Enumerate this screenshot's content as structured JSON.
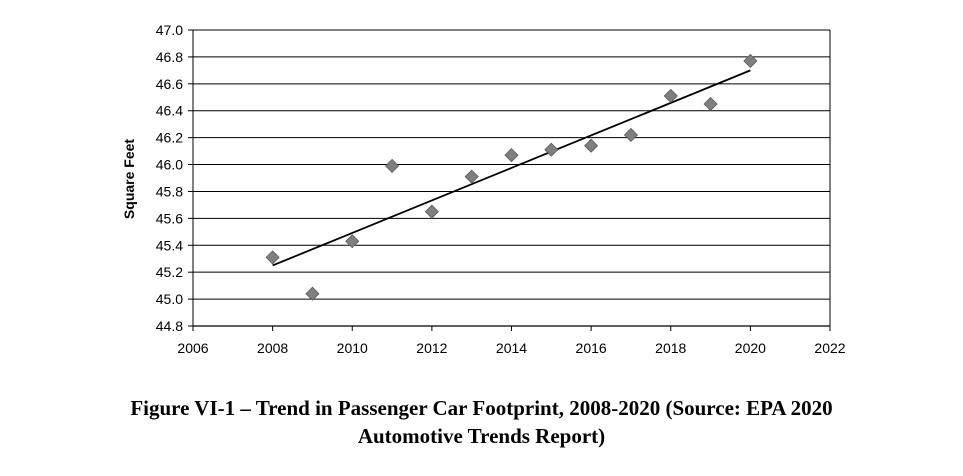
{
  "chart_data": {
    "type": "scatter",
    "ylabel": "Square Feet",
    "xlim": [
      2006,
      2022
    ],
    "ylim": [
      44.8,
      47.0
    ],
    "x_ticks": [
      2006,
      2008,
      2010,
      2012,
      2014,
      2016,
      2018,
      2020,
      2022
    ],
    "y_ticks": [
      44.8,
      45.0,
      45.2,
      45.4,
      45.6,
      45.8,
      46.0,
      46.2,
      46.4,
      46.6,
      46.8,
      47.0
    ],
    "grid": "horizontal",
    "series": [
      {
        "x": [
          2008,
          2009,
          2010,
          2011,
          2012,
          2013,
          2014,
          2015,
          2016,
          2017,
          2018,
          2019,
          2020
        ],
        "y": [
          45.31,
          45.04,
          45.43,
          45.99,
          45.65,
          45.91,
          46.07,
          46.11,
          46.14,
          46.22,
          46.51,
          46.45,
          46.77
        ],
        "marker_color": "#7f7f7f"
      }
    ],
    "trendline": {
      "x": [
        2008,
        2020
      ],
      "y": [
        45.25,
        46.7
      ],
      "color": "#000000"
    }
  },
  "caption": {
    "line1": "Figure VI-1 – Trend in Passenger Car Footprint, 2008-2020 (Source:  EPA 2020",
    "line2": "Automotive Trends Report)"
  }
}
